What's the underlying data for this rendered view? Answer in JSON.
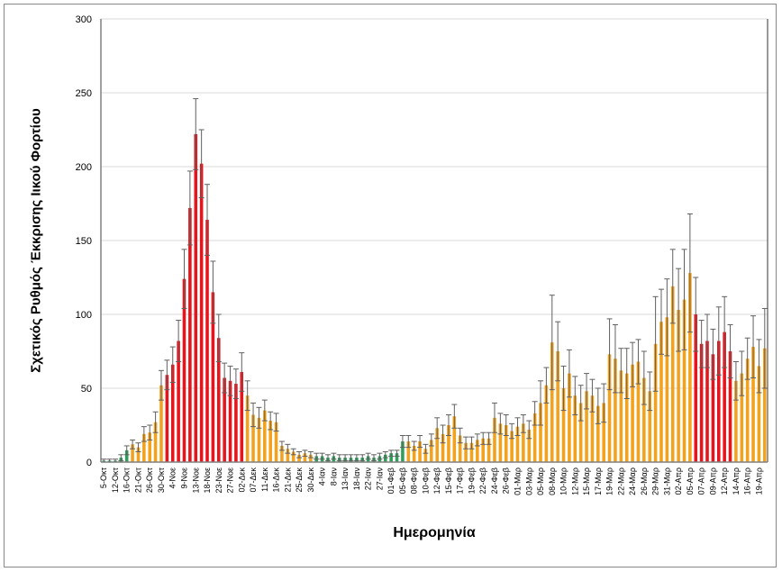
{
  "chart_data": {
    "type": "bar",
    "title": "",
    "xlabel": "Ημερομηνία",
    "ylabel": "Σχετικός Ρυθμός Έκκρισης Ιικού Φορτίου",
    "ylim": [
      0,
      300
    ],
    "yticks": [
      0,
      50,
      100,
      150,
      200,
      250,
      300
    ],
    "grid": true,
    "tick_labels": [
      "5-Οκτ",
      "12-Οκτ",
      "16-Οκτ",
      "21-Οκτ",
      "26-Οκτ",
      "30-Οκτ",
      "4-Νοε",
      "9-Νοε",
      "13-Νοε",
      "18-Νοε",
      "23-Νοε",
      "27-Νοε",
      "02-Δεκ",
      "07-Δεκ",
      "11-Δεκ",
      "16-Δεκ",
      "21-Δεκ",
      "25-Δεκ",
      "30-Δεκ",
      "4-Ιαν",
      "8-Ιαν",
      "13-Ιαν",
      "18-Ιαν",
      "22-Ιαν",
      "27-Ιαν",
      "01-Φεβ",
      "05-Φεβ",
      "08-Φεβ",
      "10-Φεβ",
      "12-Φεβ",
      "15-Φεβ",
      "17-Φεβ",
      "19-Φεβ",
      "22-Φεβ",
      "24-Φεβ",
      "26-Φεβ",
      "01-Μαρ",
      "03-Μαρ",
      "05-Μαρ",
      "08-Μαρ",
      "10-Μαρ",
      "12-Μαρ",
      "15-Μαρ",
      "17-Μαρ",
      "19-Μαρ",
      "22-Μαρ",
      "24-Μαρ",
      "26-Μαρ",
      "29-Μαρ",
      "31-Μαρ",
      "02-Απρ",
      "05-Απρ",
      "07-Απρ",
      "09-Απρ",
      "12-Απρ",
      "14-Απρ",
      "16-Απρ",
      "19-Απρ"
    ],
    "values": [
      1,
      1,
      1,
      3,
      8,
      12,
      10,
      19,
      20,
      27,
      52,
      59,
      66,
      82,
      124,
      172,
      222,
      202,
      164,
      115,
      84,
      57,
      55,
      53,
      61,
      45,
      32,
      30,
      35,
      28,
      27,
      11,
      9,
      7,
      5,
      6,
      5,
      4,
      4,
      3,
      4,
      3,
      3,
      3,
      3,
      3,
      4,
      3,
      4,
      5,
      6,
      6,
      14,
      14,
      11,
      14,
      9,
      15,
      23,
      19,
      25,
      31,
      18,
      13,
      13,
      15,
      16,
      16,
      30,
      26,
      25,
      21,
      24,
      26,
      22,
      33,
      40,
      52,
      81,
      75,
      50,
      60,
      45,
      40,
      48,
      45,
      38,
      40,
      73,
      70,
      62,
      60,
      66,
      68,
      57,
      48,
      80,
      95,
      98,
      119,
      103,
      110,
      128,
      100,
      80,
      82,
      73,
      82,
      88,
      75,
      55,
      60,
      70,
      78,
      65,
      77
    ],
    "errors": [
      1,
      1,
      1,
      2,
      3,
      3,
      3,
      5,
      5,
      7,
      10,
      10,
      12,
      14,
      20,
      25,
      24,
      23,
      24,
      21,
      16,
      10,
      10,
      10,
      13,
      10,
      8,
      7,
      7,
      6,
      6,
      3,
      3,
      2,
      2,
      2,
      2,
      2,
      2,
      2,
      2,
      2,
      2,
      2,
      2,
      2,
      2,
      2,
      2,
      2,
      2,
      2,
      4,
      4,
      3,
      4,
      3,
      4,
      7,
      6,
      7,
      8,
      5,
      4,
      4,
      4,
      4,
      4,
      10,
      7,
      7,
      5,
      6,
      6,
      6,
      8,
      15,
      12,
      32,
      20,
      15,
      16,
      13,
      12,
      12,
      11,
      12,
      13,
      24,
      23,
      15,
      17,
      15,
      15,
      18,
      13,
      32,
      22,
      26,
      25,
      28,
      34,
      40,
      25,
      16,
      18,
      17,
      23,
      24,
      18,
      13,
      15,
      14,
      21,
      18,
      27
    ],
    "levels": "gggggoooooorrrrrrrrrrrrrrooooooooooooggggggggggggggggoooooooooooooooooooooooooooooooooooooooooooooooooorrrrrrroooooooooooooooo",
    "colors": {
      "g": "#2e9e5a",
      "o": "#f4a11c",
      "r": "#e8141c",
      "error": "#606060",
      "grid": "#d9d9d9"
    }
  }
}
